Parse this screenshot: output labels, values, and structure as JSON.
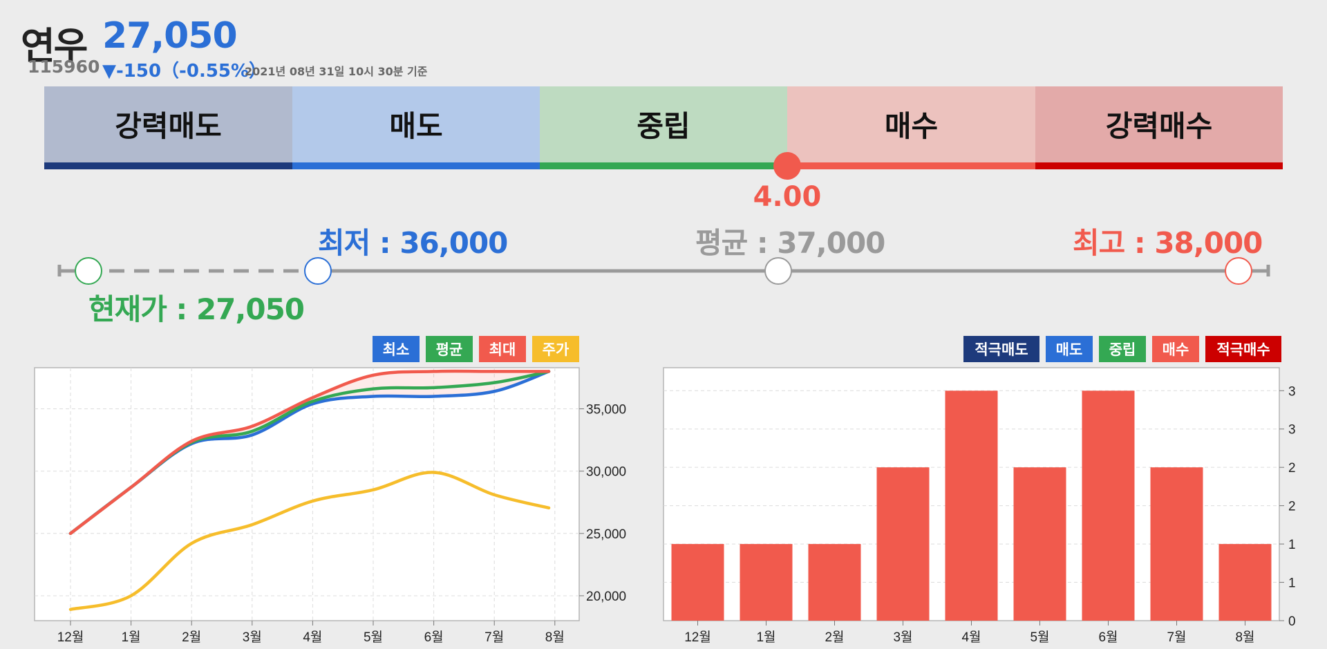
{
  "header": {
    "name": "연우",
    "price": "27,050",
    "code": "115960",
    "change": "▼-150（-0.55%）",
    "date": "2021년 08년 31일 10시 30분 기준"
  },
  "rating": {
    "segments": [
      {
        "label": "강력매도",
        "bg": "#b1bace",
        "line": "#1d3a7c"
      },
      {
        "label": "매도",
        "bg": "#b3c9ea",
        "line": "#2b6fd6"
      },
      {
        "label": "중립",
        "bg": "#bedbc1",
        "line": "#34a853"
      },
      {
        "label": "매수",
        "bg": "#ecc2be",
        "line": "#f15a4d"
      },
      {
        "label": "강력매수",
        "bg": "#e3aaa9",
        "line": "#cc0000"
      }
    ],
    "score": "4.00"
  },
  "target": {
    "current_label": "현재가 : 27,050",
    "min_label": "최저 : 36,000",
    "avg_label": "평균 : 37,000",
    "max_label": "최고 : 38,000"
  },
  "colors": {
    "blue": "#2b6fd6",
    "green": "#34a853",
    "red": "#f15a4d",
    "yellow": "#f6bd2b",
    "grey": "#9a9a9a",
    "navy": "#1d3a7c",
    "darkred": "#cc0000"
  },
  "chart_data": [
    {
      "type": "line",
      "categories": [
        "12월",
        "1월",
        "2월",
        "3월",
        "4월",
        "5월",
        "6월",
        "7월",
        "8월"
      ],
      "legend": [
        "최소",
        "평균",
        "최대",
        "주가"
      ],
      "y_ticks": [
        "20,000",
        "25,000",
        "30,000",
        "35,000"
      ],
      "ylim": [
        18000,
        38300
      ],
      "series": [
        {
          "name": "최소",
          "color": "#2b6fd6",
          "x": [
            0,
            1,
            2,
            3,
            4,
            5,
            6,
            7,
            7.9
          ],
          "values": [
            25000,
            28700,
            32200,
            32900,
            35400,
            36000,
            36000,
            36400,
            38000
          ]
        },
        {
          "name": "평균",
          "color": "#34a853",
          "x": [
            0,
            1,
            2,
            3,
            4,
            5,
            6,
            7,
            7.9
          ],
          "values": [
            25000,
            28700,
            32300,
            33200,
            35600,
            36600,
            36700,
            37100,
            38000
          ]
        },
        {
          "name": "최대",
          "color": "#f15a4d",
          "x": [
            0,
            1,
            2,
            3,
            4,
            5,
            6,
            7,
            7.9
          ],
          "values": [
            25000,
            28700,
            32400,
            33600,
            35900,
            37700,
            38000,
            38000,
            38000
          ]
        },
        {
          "name": "주가",
          "color": "#f6bd2b",
          "x": [
            0,
            1,
            2,
            3,
            4,
            5,
            6,
            7,
            7.9
          ],
          "values": [
            18900,
            20000,
            24200,
            25700,
            27600,
            28500,
            29900,
            28100,
            27050
          ]
        }
      ]
    },
    {
      "type": "bar",
      "categories": [
        "12월",
        "1월",
        "2월",
        "3월",
        "4월",
        "5월",
        "6월",
        "7월",
        "8월"
      ],
      "legend": [
        "적극매도",
        "매도",
        "중립",
        "매수",
        "적극매수"
      ],
      "y_ticks": [
        "0",
        "1",
        "1",
        "2",
        "2",
        "3",
        "3"
      ],
      "ylim": [
        0,
        3.3
      ],
      "values": [
        1,
        1,
        1,
        2,
        3,
        2,
        3,
        2,
        1
      ]
    }
  ]
}
